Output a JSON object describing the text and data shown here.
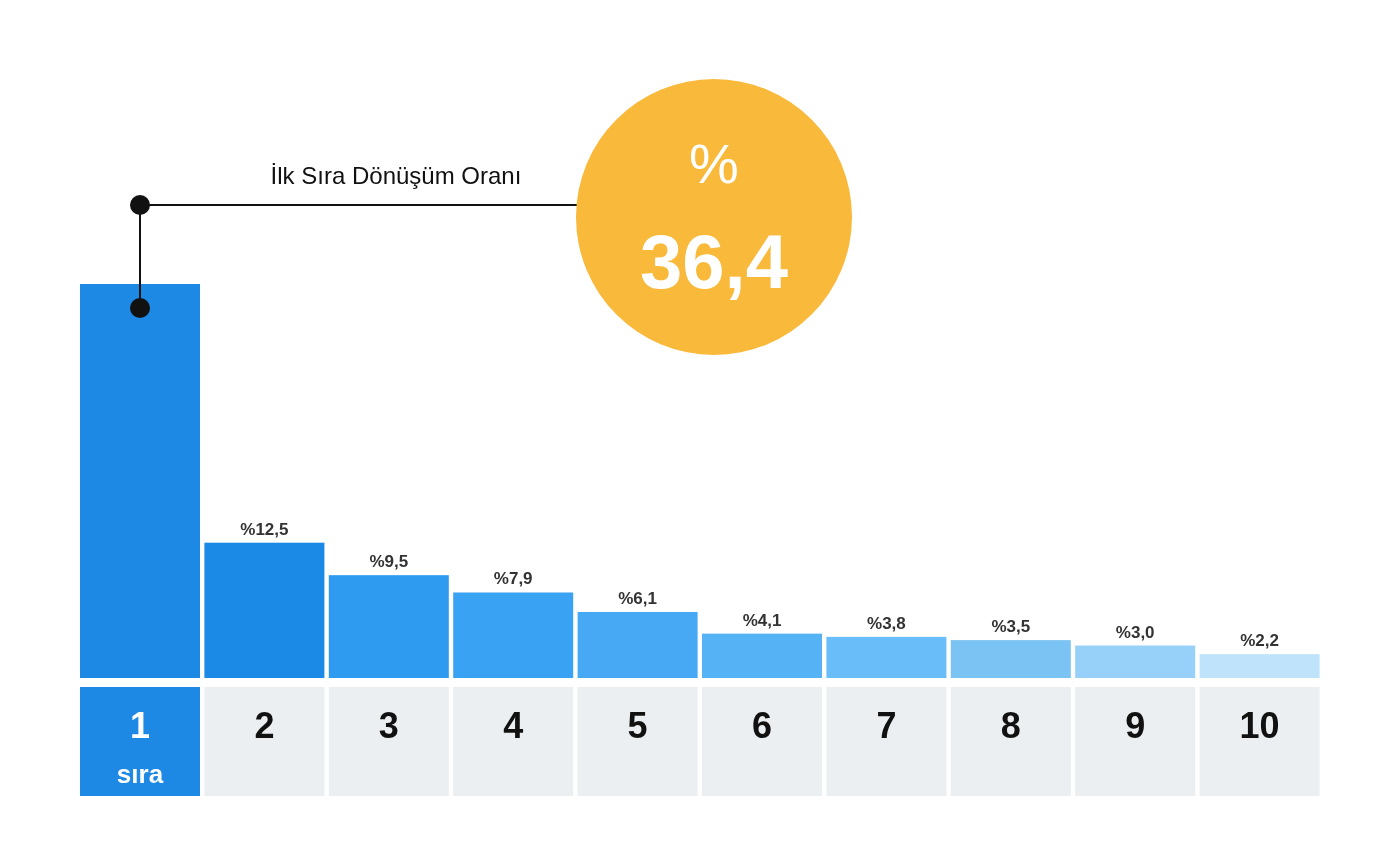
{
  "chart_data": {
    "type": "bar",
    "categories": [
      "1",
      "2",
      "3",
      "4",
      "5",
      "6",
      "7",
      "8",
      "9",
      "10"
    ],
    "values": [
      36.4,
      12.5,
      9.5,
      7.9,
      6.1,
      4.1,
      3.8,
      3.5,
      3.0,
      2.2
    ],
    "colors": [
      "#1e88e5",
      "#1a8ae6",
      "#2e9bf0",
      "#3aa2f2",
      "#47a9f3",
      "#55b2f5",
      "#69bdf8",
      "#7bc3f3",
      "#97d0f8",
      "#bfe3fb"
    ],
    "value_labels": [
      "%36,4",
      "%12,5",
      "%9,5",
      "%7,9",
      "%6,1",
      "%4,1",
      "%3,8",
      "%3,5",
      "%3,0",
      "%2,2"
    ],
    "annotations": [
      "İlk Sıra Dönüşüm Oranı",
      "sıra"
    ]
  }
}
